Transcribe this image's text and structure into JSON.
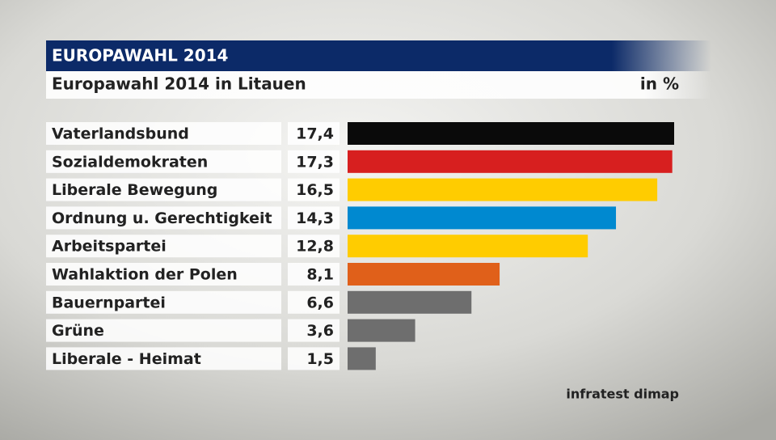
{
  "chart_data": {
    "type": "bar",
    "header": "EUROPAWAHL 2014",
    "title": "Europawahl 2014 in Litauen",
    "unit": "in %",
    "categories": [
      "Vaterlandsbund",
      "Sozialdemokraten",
      "Liberale Bewegung",
      "Ordnung u. Gerechtigkeit",
      "Arbeitspartei",
      "Wahlaktion der Polen",
      "Bauernpartei",
      "Grüne",
      "Liberale - Heimat"
    ],
    "values": [
      17.4,
      17.3,
      16.5,
      14.3,
      12.8,
      8.1,
      6.6,
      3.6,
      1.5
    ],
    "value_labels": [
      "17,4",
      "17,3",
      "16,5",
      "14,3",
      "12,8",
      "8,1",
      "6,6",
      "3,6",
      "1,5"
    ],
    "colors": [
      "#0a0a0a",
      "#d71f1f",
      "#ffcc00",
      "#0089d0",
      "#ffcc00",
      "#e0601a",
      "#6e6e6e",
      "#6e6e6e",
      "#6e6e6e"
    ],
    "source": "infratest dimap"
  }
}
